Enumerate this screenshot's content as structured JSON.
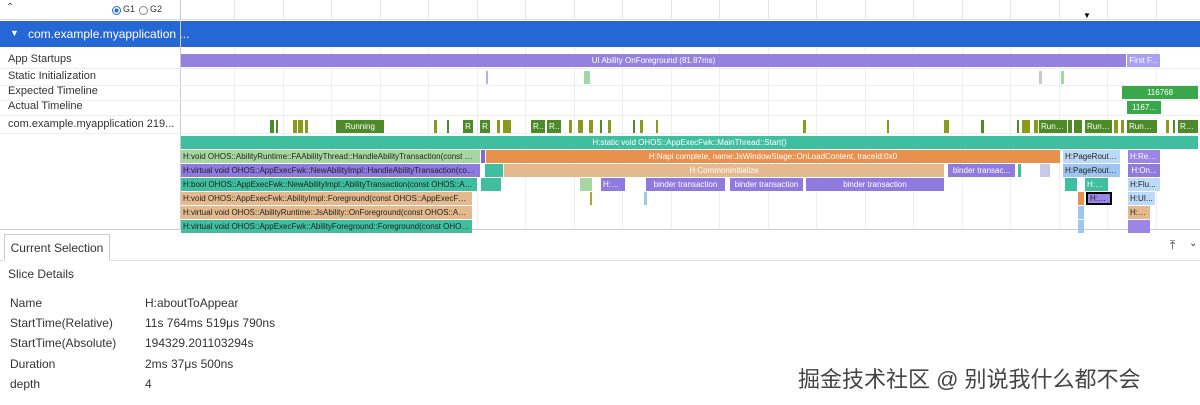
{
  "toolbar": {
    "radios": [
      "G1",
      "G2"
    ]
  },
  "process": {
    "name": "com.example.myapplication ..."
  },
  "rows": [
    "App Startups",
    "Static Initialization",
    "Expected Timeline",
    "Actual Timeline",
    "com.example.myapplication 219..."
  ],
  "slices": {
    "startup": [
      "UI Ability OnForeground (81.87ms)",
      "First F..."
    ],
    "expected": [
      "116768"
    ],
    "actual": [
      "1167..."
    ],
    "thread": [
      "Running",
      "R",
      "R",
      "R...",
      "R...",
      "Running",
      "Running",
      "Runni...",
      "Runn..."
    ],
    "depth0": [
      "H:static void OHOS::AppExecFwk::MainThread::Start()"
    ],
    "depth1": [
      "H:void OHOS::AbilityRuntime::FAAbilityThread::HandleAbilityTransaction(const OH...",
      "H:Napi complete, name:JsWindowStage::OnLoadContent, traceId:0x0",
      "H:PageRoute...",
      "H:Rece..."
    ],
    "depth2": [
      "H:virtual void OHOS::AppExecFwk::NewAbilityImpl::HandleAbilityTransaction(const ...",
      "H:CommonInitialize",
      "binder transac...",
      "H:PageRoute...",
      "H:On..."
    ],
    "depth3": [
      "H:bool OHOS::AppExecFwk::NewAbilityImpl::AbilityTransaction(const OHOS::AppEx...",
      "H:O...",
      "binder transaction",
      "binder transaction",
      "binder transaction",
      "H:C...",
      "H:Flu..."
    ],
    "depth4": [
      "H:void OHOS::AppExecFwk::AbilityImpl::Foreground(const OHOS::AppExecFwk::Want...",
      "H:a...",
      "H:UI..."
    ],
    "depth5": [
      "H:virtual void OHOS::AbilityRuntime::JsAbility::OnForeground(const OHOS::Abil...",
      "H:F..."
    ],
    "depth6": [
      "H:virtual void OHOS::AppExecFwk::AbilityForeground::Foreground(const OHOS::AppEx..."
    ]
  },
  "panel": {
    "tab": "Current Selection",
    "section": "Slice Details",
    "details": [
      [
        "Name",
        "H:aboutToAppear"
      ],
      [
        "StartTime(Relative)",
        "11s 764ms 519μs 790ns"
      ],
      [
        "StartTime(Absolute)",
        "194329.201103294s"
      ],
      [
        "Duration",
        "2ms 37μs 500ns"
      ],
      [
        "depth",
        "4"
      ]
    ]
  },
  "watermark": "掘金技术社区 @ 别说我什么都不会"
}
